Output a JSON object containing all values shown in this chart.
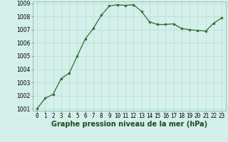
{
  "x": [
    0,
    1,
    2,
    3,
    4,
    5,
    6,
    7,
    8,
    9,
    10,
    11,
    12,
    13,
    14,
    15,
    16,
    17,
    18,
    19,
    20,
    21,
    22,
    23
  ],
  "y": [
    1001.0,
    1001.8,
    1002.1,
    1003.3,
    1003.7,
    1005.0,
    1006.3,
    1007.1,
    1008.1,
    1008.8,
    1008.9,
    1008.85,
    1008.9,
    1008.4,
    1007.6,
    1007.4,
    1007.4,
    1007.45,
    1007.1,
    1007.0,
    1006.95,
    1006.9,
    1007.5,
    1007.9
  ],
  "line_color": "#2d6a2d",
  "marker": "o",
  "marker_size": 2.0,
  "bg_color": "#d4f0eb",
  "grid_color": "#b8dbd6",
  "xlabel": "Graphe pression niveau de la mer (hPa)",
  "xlabel_fontsize": 7,
  "ylim_min": 1001,
  "ylim_max": 1009,
  "xlim_min": 0,
  "xlim_max": 23,
  "yticks": [
    1001,
    1002,
    1003,
    1004,
    1005,
    1006,
    1007,
    1008,
    1009
  ],
  "xticks": [
    0,
    1,
    2,
    3,
    4,
    5,
    6,
    7,
    8,
    9,
    10,
    11,
    12,
    13,
    14,
    15,
    16,
    17,
    18,
    19,
    20,
    21,
    22,
    23
  ],
  "tick_fontsize": 5.5,
  "linewidth": 0.9
}
